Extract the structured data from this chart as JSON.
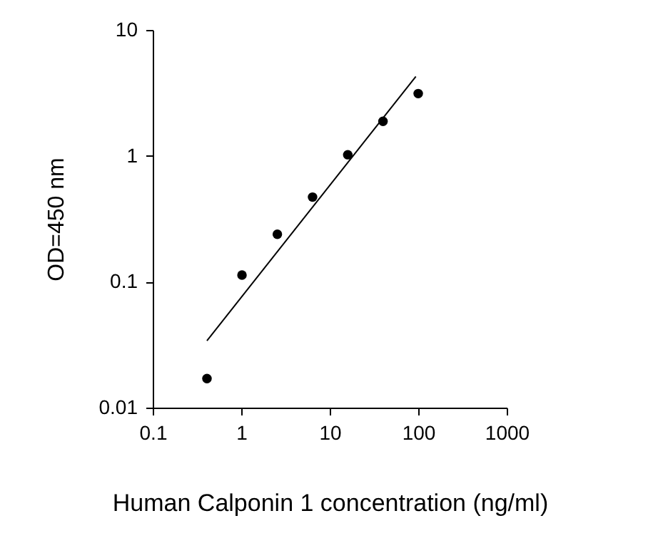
{
  "chart_data": {
    "type": "scatter",
    "xlabel": "Human Calponin 1 concentration (ng/ml)",
    "ylabel": "OD=450 nm",
    "log": "xy",
    "grid": false,
    "xlim": [
      0.1,
      1000
    ],
    "xticks": [
      0.1,
      1,
      10,
      100,
      1000
    ],
    "ylim": [
      0.01,
      10
    ],
    "yticks": [
      0.01,
      0.1,
      1,
      10
    ],
    "series": [
      {
        "color": "#000000",
        "marker": "circle",
        "x": [
          0.41,
          1.02,
          2.56,
          6.4,
          16,
          40,
          100
        ],
        "values": [
          0.017,
          0.113,
          0.238,
          0.47,
          1.02,
          1.88,
          3.12
        ]
      },
      {
        "type": "line",
        "marker": "none",
        "color": "#000000",
        "x": [
          0.41,
          94
        ],
        "values": [
          0.034,
          4.27
        ]
      }
    ]
  }
}
